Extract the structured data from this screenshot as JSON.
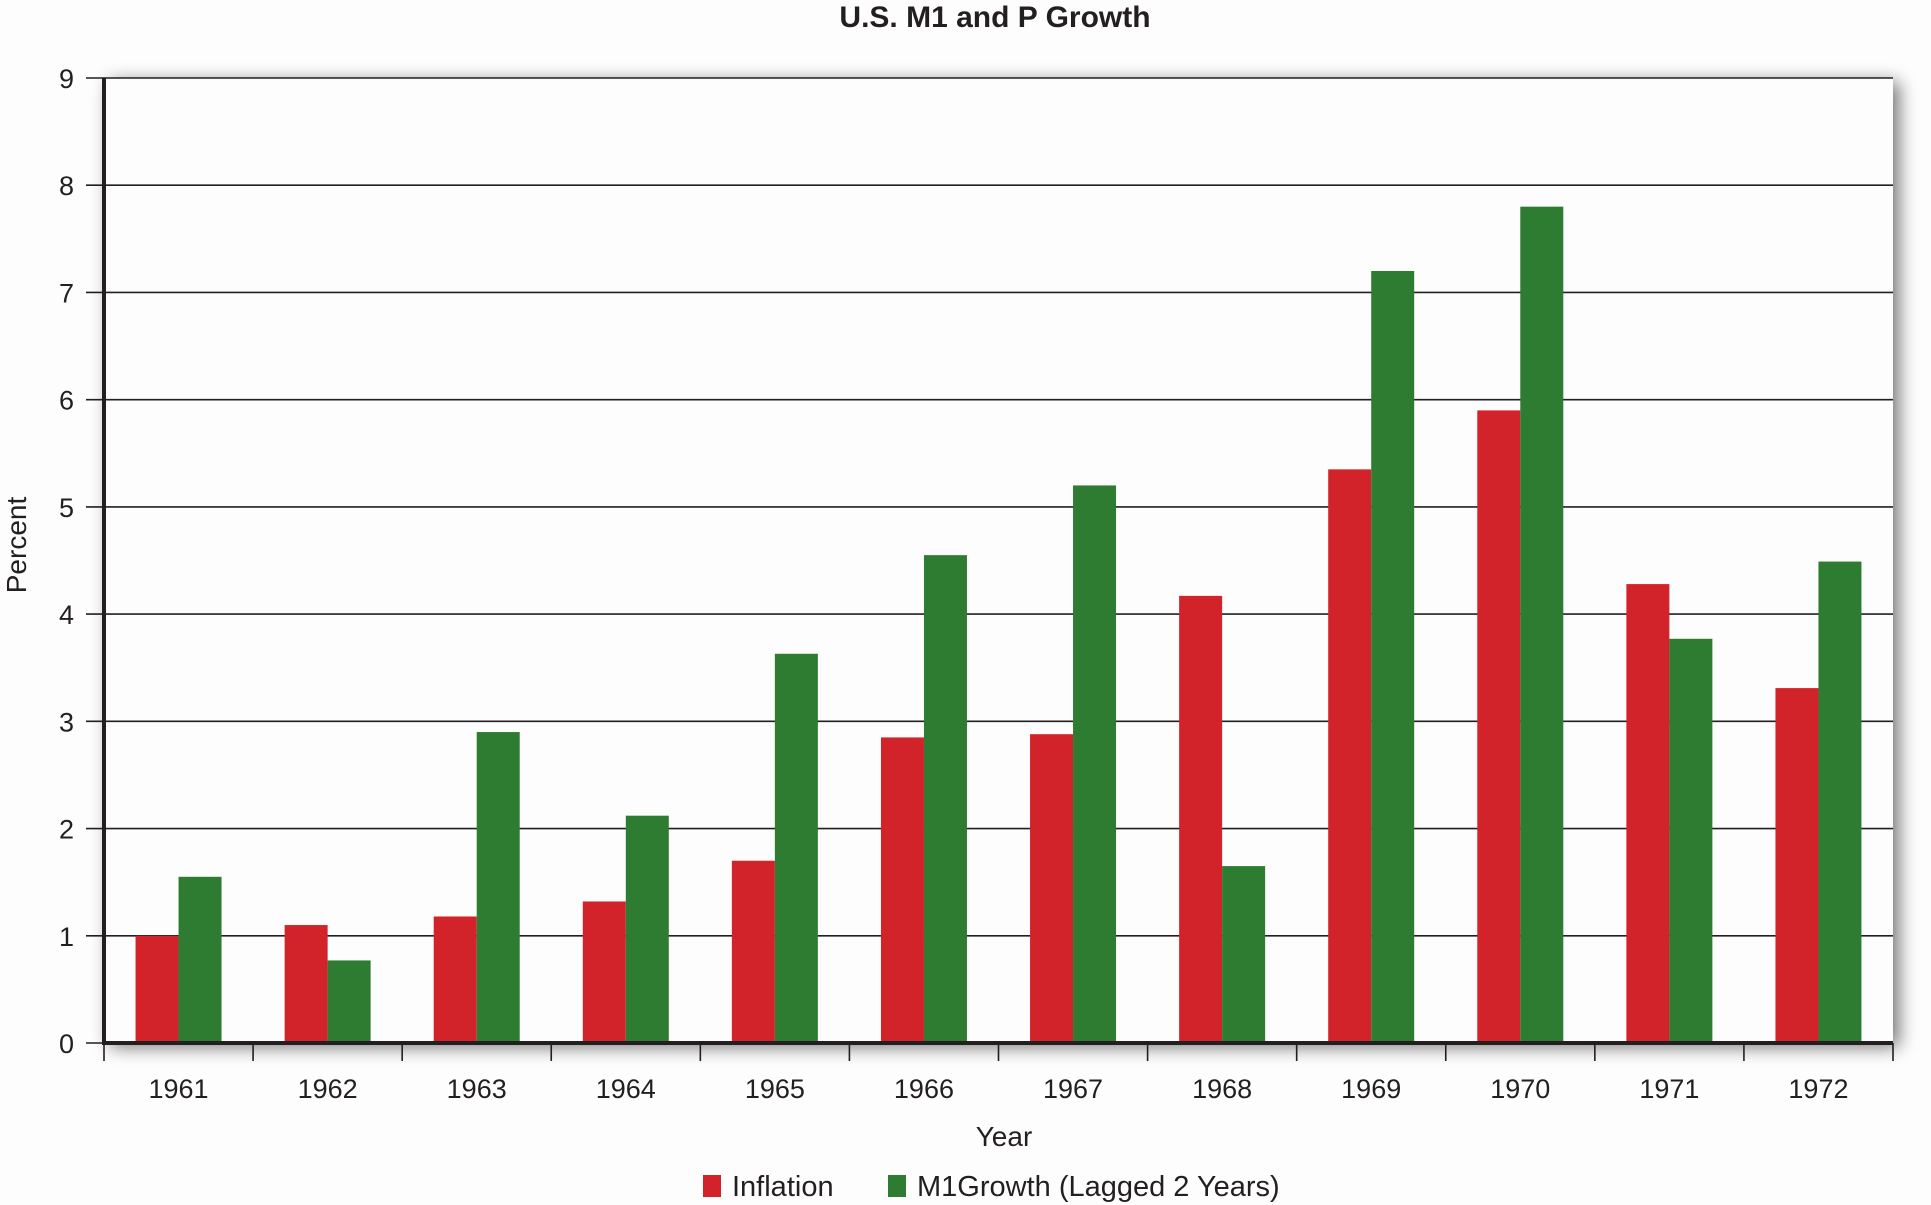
{
  "chart_data": {
    "type": "bar",
    "title": "U.S. M1 and P Growth",
    "xlabel": "Year",
    "ylabel": "Percent",
    "ylim": [
      0,
      9
    ],
    "yticks": [
      "0",
      "1",
      "2",
      "3",
      "4",
      "5",
      "6",
      "7",
      "8",
      "9"
    ],
    "grid": true,
    "legend_position": "bottom-center",
    "categories": [
      "1961",
      "1962",
      "1963",
      "1964",
      "1965",
      "1966",
      "1967",
      "1968",
      "1969",
      "1970",
      "1971",
      "1972"
    ],
    "series": [
      {
        "name": "Inflation",
        "color": "#d2232a",
        "values": [
          1.0,
          1.1,
          1.18,
          1.32,
          1.7,
          2.85,
          2.88,
          4.17,
          5.35,
          5.9,
          4.28,
          3.31
        ]
      },
      {
        "name": "M1Growth (Lagged 2 Years)",
        "color": "#2e7b32",
        "values": [
          1.55,
          0.77,
          2.9,
          2.12,
          3.63,
          4.55,
          5.2,
          1.65,
          7.2,
          7.8,
          3.77,
          4.49
        ]
      }
    ]
  }
}
